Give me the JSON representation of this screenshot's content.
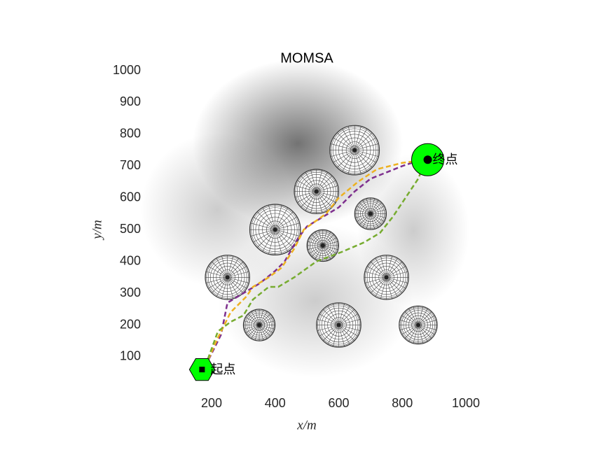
{
  "chart_data": {
    "type": "path-planning",
    "title": "MOMSA",
    "x_label": "x/m",
    "y_label": "y/m",
    "xlim": [
      100,
      1000
    ],
    "ylim": [
      0,
      1000
    ],
    "xticks": [
      200,
      400,
      600,
      800,
      1000
    ],
    "yticks": [
      100,
      200,
      300,
      400,
      500,
      600,
      700,
      800,
      900,
      1000
    ],
    "obstacles": [
      {
        "x": 650,
        "y": 750,
        "r": 78
      },
      {
        "x": 530,
        "y": 620,
        "r": 70
      },
      {
        "x": 400,
        "y": 500,
        "r": 80
      },
      {
        "x": 700,
        "y": 550,
        "r": 50
      },
      {
        "x": 550,
        "y": 450,
        "r": 50
      },
      {
        "x": 250,
        "y": 350,
        "r": 70
      },
      {
        "x": 750,
        "y": 350,
        "r": 70
      },
      {
        "x": 350,
        "y": 200,
        "r": 50
      },
      {
        "x": 600,
        "y": 200,
        "r": 70
      },
      {
        "x": 850,
        "y": 200,
        "r": 60
      }
    ],
    "start": {
      "x": 170,
      "y": 60,
      "label": "起点",
      "color": "#00ff00"
    },
    "end": {
      "x": 880,
      "y": 720,
      "label": "终点",
      "color": "#00ff00"
    },
    "series": [
      {
        "color": "#7e2f8e",
        "x": [
          180,
          230,
          250,
          300,
          350,
          400,
          430,
          470,
          500,
          550,
          600,
          650,
          700,
          750,
          800,
          860,
          880
        ],
        "values": [
          70,
          170,
          270,
          300,
          330,
          370,
          400,
          470,
          510,
          540,
          570,
          620,
          660,
          680,
          700,
          720,
          720
        ]
      },
      {
        "color": "#edb120",
        "x": [
          180,
          220,
          260,
          310,
          330,
          380,
          420,
          460,
          490,
          560,
          600,
          660,
          720,
          800,
          880
        ],
        "values": [
          70,
          160,
          240,
          290,
          320,
          350,
          380,
          440,
          500,
          550,
          600,
          650,
          690,
          710,
          720
        ]
      },
      {
        "color": "#77ac30",
        "x": [
          180,
          220,
          260,
          300,
          330,
          380,
          410,
          460,
          530,
          610,
          680,
          730,
          770,
          810,
          850,
          870
        ],
        "values": [
          70,
          180,
          210,
          230,
          280,
          320,
          320,
          350,
          400,
          430,
          460,
          490,
          540,
          600,
          660,
          710
        ]
      }
    ]
  }
}
